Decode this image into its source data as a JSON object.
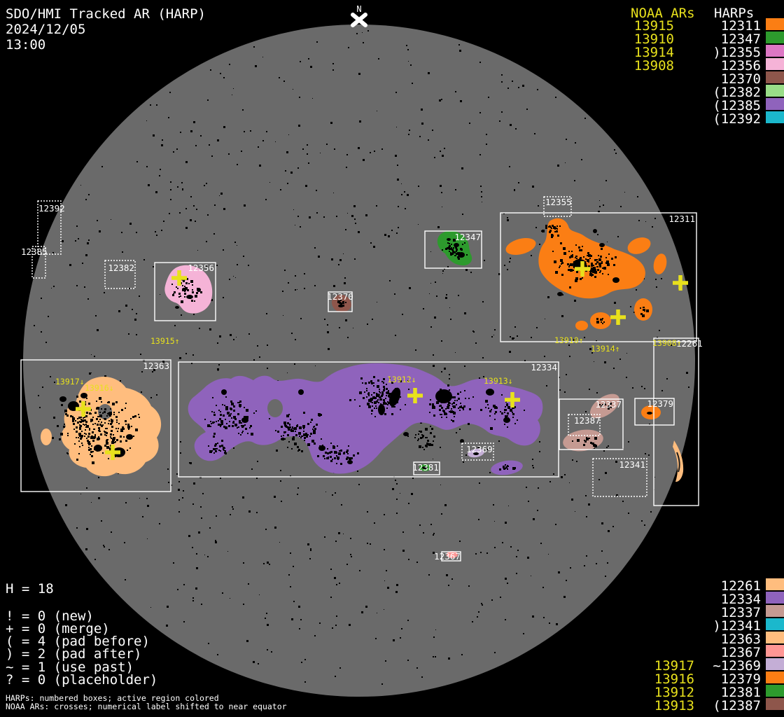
{
  "header": {
    "title": "SDO/HMI Tracked AR (HARP)",
    "date": "2024/12/05",
    "time": "13:00"
  },
  "north_marker": {
    "label": "N"
  },
  "palette": {
    "orange": "#FB7E14",
    "green": "#2D9A2D",
    "orchid": "#DD77C4",
    "pink": "#F5B3D7",
    "brown": "#8E564B",
    "lightgreen": "#99DD88",
    "purple": "#8F63BC",
    "teal": "#1BB8CC",
    "peach": "#FFBD7E",
    "rosybrown": "#C59A92",
    "salmon": "#FF9694",
    "lavender": "#C4AED6",
    "noaa_yellow": "#E8E11C",
    "harp_white": "#FFFFFF",
    "disk_gray": "#6A6A6A",
    "spot_black": "#000000"
  },
  "legend_top_right": {
    "noaa_header": "NOAA ARs",
    "harp_header": "HARPs",
    "rows": [
      {
        "noaa": "13915",
        "harp": "12311",
        "color": "orange"
      },
      {
        "noaa": "13910",
        "harp": "12347",
        "color": "green"
      },
      {
        "noaa": "13914",
        "harp": ")12355",
        "color": "orchid"
      },
      {
        "noaa": "13908",
        "harp": "12356",
        "color": "pink"
      },
      {
        "noaa": "",
        "harp": "12370",
        "color": "brown"
      },
      {
        "noaa": "",
        "harp": "(12382",
        "color": "lightgreen"
      },
      {
        "noaa": "",
        "harp": "(12385",
        "color": "purple"
      },
      {
        "noaa": "",
        "harp": "(12392",
        "color": "teal"
      }
    ]
  },
  "legend_bottom_right": {
    "rows": [
      {
        "noaa": "",
        "harp": "12261",
        "color": "peach"
      },
      {
        "noaa": "",
        "harp": "12334",
        "color": "purple"
      },
      {
        "noaa": "",
        "harp": "12337",
        "color": "rosybrown"
      },
      {
        "noaa": "",
        "harp": ")12341",
        "color": "teal"
      },
      {
        "noaa": "",
        "harp": "12363",
        "color": "peach"
      },
      {
        "noaa": "",
        "harp": "12367",
        "color": "salmon"
      },
      {
        "noaa": "13917",
        "harp": "~12369",
        "color": "lavender"
      },
      {
        "noaa": "13916",
        "harp": "12379",
        "color": "orange"
      },
      {
        "noaa": "13912",
        "harp": "12381",
        "color": "green"
      },
      {
        "noaa": "13913",
        "harp": "(12387",
        "color": "brown"
      }
    ]
  },
  "counters": {
    "h_total": "H = 18",
    "lines": [
      "! = 0 (new)",
      "+ = 0 (merge)",
      "( = 4 (pad before)",
      ") = 2 (pad after)",
      "~ = 1 (use past)",
      "? = 0 (placeholder)"
    ]
  },
  "footer": {
    "line1": "HARPs: numbered boxes; active region colored",
    "line2": "NOAA ARs: crosses; numerical label shifted to near equator"
  },
  "disk": {
    "boxes": [
      {
        "harp": "12311",
        "dotted": false,
        "color": "orange"
      },
      {
        "harp": "12347",
        "dotted": false,
        "color": "green"
      },
      {
        "harp": "12355",
        "dotted": true,
        "color": "orchid"
      },
      {
        "harp": "12356",
        "dotted": false,
        "color": "pink"
      },
      {
        "harp": "12370",
        "dotted": false,
        "color": "brown"
      },
      {
        "harp": "12382",
        "dotted": true,
        "color": "lightgreen"
      },
      {
        "harp": "12385",
        "dotted": true,
        "color": "purple"
      },
      {
        "harp": "12392",
        "dotted": true,
        "color": "teal"
      },
      {
        "harp": "12363",
        "dotted": false,
        "color": "peach"
      },
      {
        "harp": "12334",
        "dotted": false,
        "color": "purple"
      },
      {
        "harp": "12337",
        "dotted": false,
        "color": "rosybrown"
      },
      {
        "harp": "12387",
        "dotted": true,
        "color": "brown"
      },
      {
        "harp": "12379",
        "dotted": false,
        "color": "orange"
      },
      {
        "harp": "12341",
        "dotted": true,
        "color": "teal"
      },
      {
        "harp": "12369",
        "dotted": true,
        "color": "lavender"
      },
      {
        "harp": "12381",
        "dotted": false,
        "color": "green"
      },
      {
        "harp": "12367",
        "dotted": false,
        "color": "salmon"
      },
      {
        "harp": "12261",
        "dotted": false,
        "color": "peach"
      }
    ],
    "ar_labels": [
      "13915↑",
      "13917↓",
      "13916↓",
      "13912↓",
      "13913↓",
      "13910↑",
      "13914↑",
      "13908↑"
    ]
  },
  "chart_data": {
    "type": "table",
    "title": "SDO/HMI Tracked AR (HARP)",
    "timestamp": "2024/12/05 13:00",
    "columns": [
      "NOAA AR",
      "HARP"
    ],
    "legend_top_right_rows": [
      [
        "13915",
        "12311"
      ],
      [
        "13910",
        "12347"
      ],
      [
        "13914",
        ")12355"
      ],
      [
        "13908",
        "12356"
      ],
      [
        "",
        "12370"
      ],
      [
        "",
        "(12382"
      ],
      [
        "",
        "(12385"
      ],
      [
        "",
        "(12392"
      ]
    ],
    "legend_bottom_right_rows": [
      [
        "",
        "12261"
      ],
      [
        "",
        "12334"
      ],
      [
        "",
        "12337"
      ],
      [
        "",
        ")12341"
      ],
      [
        "",
        "12363"
      ],
      [
        "",
        "12367"
      ],
      [
        "13917",
        "~12369"
      ],
      [
        "13916",
        "12379"
      ],
      [
        "13912",
        "12381"
      ],
      [
        "13913",
        "(12387"
      ]
    ],
    "harp_total": 18,
    "flag_counts": {
      "new": 0,
      "merge": 0,
      "pad_before": 4,
      "pad_after": 2,
      "use_past": 1,
      "placeholder": 0
    },
    "on_disk_noaa_labels": [
      "13915↑",
      "13917↓",
      "13916↓",
      "13912↓",
      "13913↓",
      "13910↑",
      "13914↑",
      "13908↑"
    ]
  }
}
